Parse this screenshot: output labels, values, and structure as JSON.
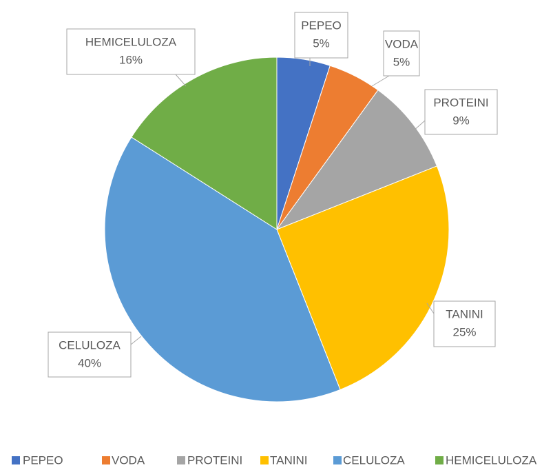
{
  "chart_data": {
    "type": "pie",
    "categories": [
      "PEPEO",
      "VODA",
      "PROTEINI",
      "TANINI",
      "CELULOZA",
      "HEMICELULOZA"
    ],
    "values": [
      5,
      5,
      9,
      25,
      40,
      16
    ],
    "value_labels": [
      "5%",
      "5%",
      "9%",
      "25%",
      "40%",
      "16%"
    ],
    "colors": [
      "#4472c4",
      "#ed7d31",
      "#a5a5a5",
      "#ffc000",
      "#5b9bd5",
      "#70ad47"
    ],
    "legend": "bottom"
  }
}
